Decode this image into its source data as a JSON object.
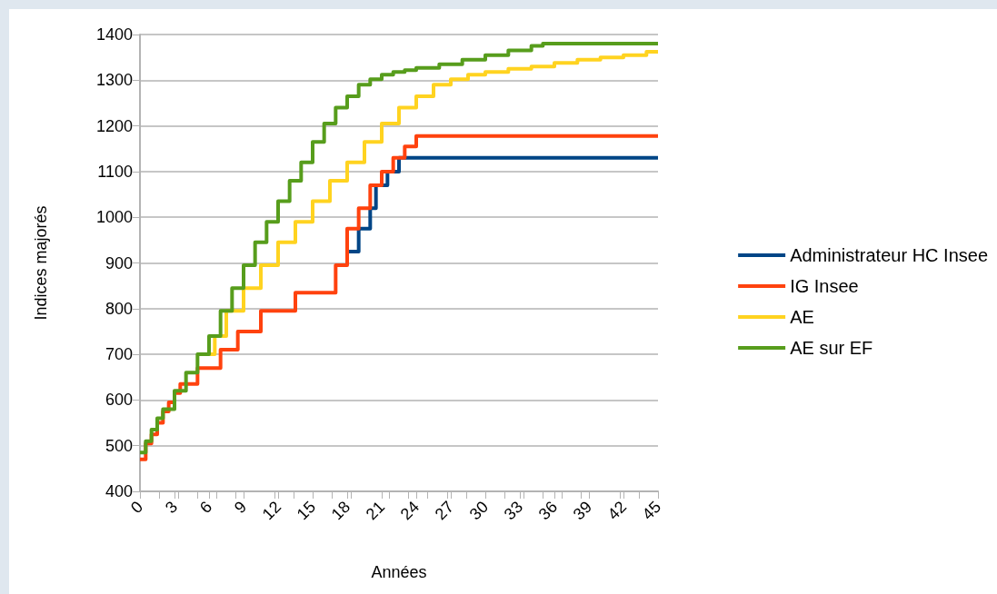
{
  "chart_data": {
    "type": "step",
    "xlabel": "Années",
    "ylabel": "Indices majorés",
    "xlim": [
      0,
      45
    ],
    "xticks": [
      0,
      3,
      6,
      9,
      12,
      15,
      18,
      21,
      24,
      27,
      30,
      33,
      36,
      39,
      42,
      45
    ],
    "ylim": [
      400,
      1400
    ],
    "yticks": [
      400,
      500,
      600,
      700,
      800,
      900,
      1000,
      1100,
      1200,
      1300,
      1400
    ],
    "grid": "y",
    "legend": "right",
    "marker": "none",
    "line_style": "solid",
    "series": [
      {
        "name": "Administrateur HC Insee",
        "color": "#004586",
        "x": [
          18,
          19,
          20,
          20.5,
          21.5,
          22.5,
          45
        ],
        "values": [
          925,
          975,
          1020,
          1070,
          1100,
          1130,
          1130
        ]
      },
      {
        "name": "IG Insee",
        "color": "#ff420e",
        "x": [
          0,
          0.5,
          1,
          1.5,
          2,
          2.5,
          3,
          3.5,
          5,
          7,
          8.5,
          10.5,
          13.5,
          17,
          18,
          19,
          20,
          21,
          22,
          23,
          24,
          45
        ],
        "values": [
          470,
          505,
          525,
          550,
          575,
          595,
          615,
          635,
          670,
          710,
          750,
          795,
          835,
          895,
          975,
          1020,
          1070,
          1100,
          1130,
          1155,
          1178,
          1178
        ]
      },
      {
        "name": "AE",
        "color": "#ffd320",
        "x": [
          6,
          6.5,
          7.5,
          9,
          10.5,
          12,
          13.5,
          15,
          16.5,
          18,
          19.5,
          21,
          22.5,
          24,
          25.5,
          27,
          28.5,
          30,
          32,
          34,
          36,
          38,
          40,
          42,
          44,
          45
        ],
        "values": [
          700,
          740,
          795,
          845,
          895,
          945,
          990,
          1035,
          1080,
          1120,
          1165,
          1205,
          1240,
          1265,
          1290,
          1302,
          1312,
          1318,
          1325,
          1330,
          1338,
          1345,
          1350,
          1355,
          1362,
          1362
        ]
      },
      {
        "name": "AE sur EF",
        "color": "#579d1c",
        "x": [
          0,
          0.5,
          1,
          1.5,
          2,
          3,
          4,
          5,
          6,
          7,
          8,
          9,
          10,
          11,
          12,
          13,
          14,
          15,
          16,
          17,
          18,
          19,
          20,
          21,
          22,
          23,
          24,
          26,
          28,
          30,
          32,
          34,
          35,
          45
        ],
        "values": [
          485,
          510,
          535,
          560,
          580,
          620,
          660,
          700,
          740,
          795,
          845,
          895,
          945,
          990,
          1035,
          1080,
          1120,
          1165,
          1205,
          1240,
          1265,
          1290,
          1302,
          1312,
          1318,
          1322,
          1327,
          1335,
          1345,
          1355,
          1365,
          1375,
          1380,
          1380
        ]
      }
    ]
  }
}
